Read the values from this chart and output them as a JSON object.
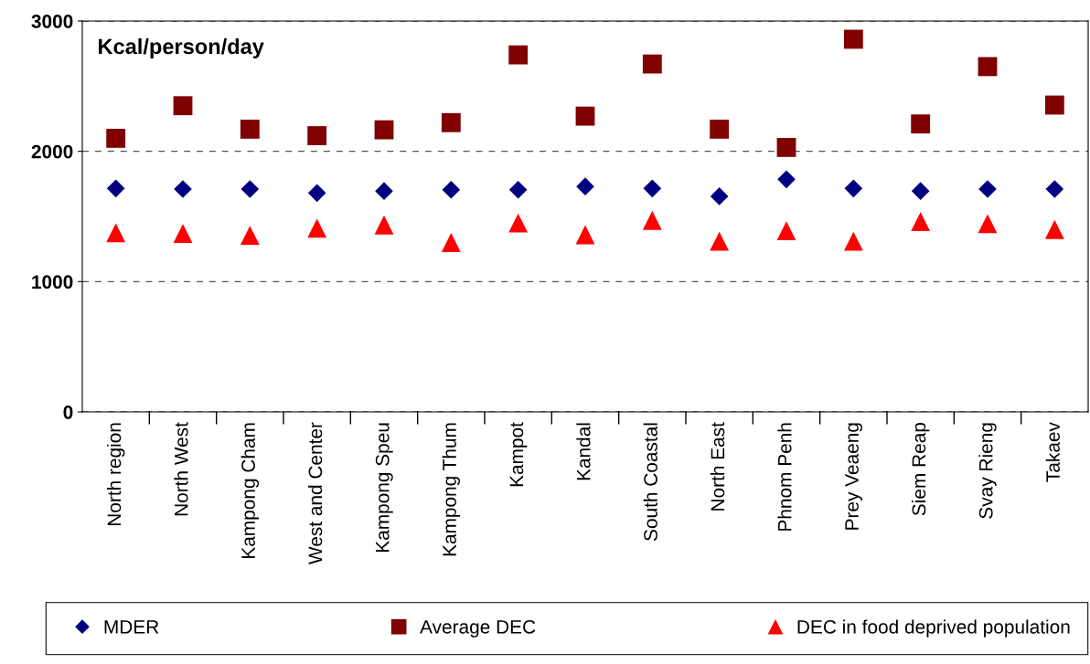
{
  "chart_data": {
    "type": "scatter",
    "annotations": [
      "Kcal/person/day"
    ],
    "categories": [
      "North region",
      "North West",
      "Kampong Cham",
      "West and Center",
      "Kampong Speu",
      "Kampong Thum",
      "Kampot",
      "Kandal",
      "South Coastal",
      "North East",
      "Phnom Penh",
      "Prey Veaeng",
      "Siem Reap",
      "Svay Rieng",
      "Takaev"
    ],
    "series": [
      {
        "name": "MDER",
        "color": "#000080",
        "marker": "diamond",
        "values": [
          1715,
          1710,
          1710,
          1680,
          1695,
          1705,
          1705,
          1730,
          1715,
          1655,
          1785,
          1715,
          1695,
          1710,
          1710
        ]
      },
      {
        "name": "Average DEC",
        "color": "#800000",
        "marker": "square",
        "values": [
          2100,
          2350,
          2170,
          2120,
          2165,
          2220,
          2740,
          2270,
          2670,
          2170,
          2030,
          2860,
          2210,
          2650,
          2355
        ]
      },
      {
        "name": "DEC in food deprived population",
        "color": "#ff0000",
        "marker": "triangle",
        "values": [
          1375,
          1370,
          1355,
          1410,
          1435,
          1300,
          1450,
          1360,
          1470,
          1310,
          1390,
          1310,
          1460,
          1445,
          1400
        ]
      }
    ],
    "ylim": [
      0,
      3000
    ],
    "yticks": [
      0,
      1000,
      2000,
      3000
    ],
    "grid": "y",
    "legend": "bottom"
  }
}
